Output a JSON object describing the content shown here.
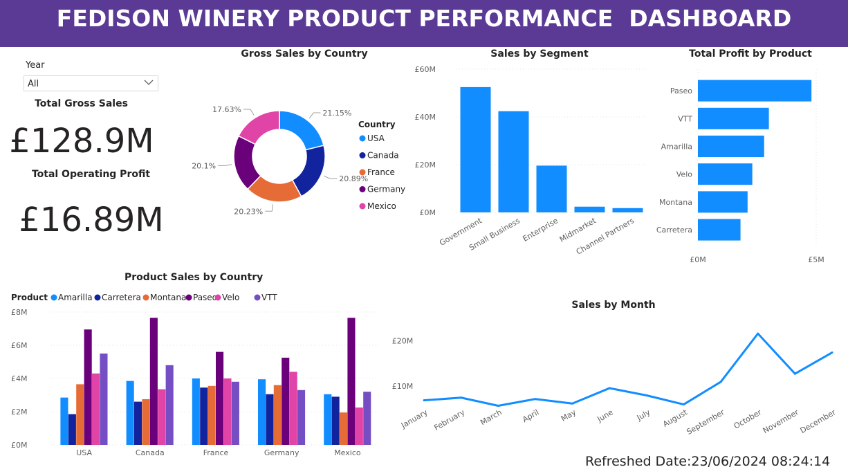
{
  "header": {
    "title": "FEDISON WINERY PRODUCT PERFORMANCE  DASHBOARD"
  },
  "slicer": {
    "label": "Year",
    "value": "All"
  },
  "cards": {
    "gross_sales_label": "Total Gross Sales",
    "gross_sales_value": "£128.9M",
    "operating_profit_label": "Total Operating Profit",
    "operating_profit_value": "£16.89M"
  },
  "colors": {
    "header": "#5b3a96",
    "blue": "#118dff",
    "navy": "#12239e",
    "orange": "#e66c37",
    "purple": "#6b007b",
    "pink": "#e044a7",
    "violet": "#744ec2"
  },
  "refreshed": "Refreshed Date:23/06/2024 08:24:14",
  "chart_data": [
    {
      "id": "donut",
      "type": "pie",
      "title": "Gross Sales by Country",
      "legend_title": "Country",
      "legend_position": "right",
      "categories": [
        "USA",
        "Canada",
        "France",
        "Germany",
        "Mexico"
      ],
      "values": [
        21.15,
        20.89,
        20.23,
        20.1,
        17.63
      ],
      "labels": [
        "21.15%",
        "20.89%",
        "20.23%",
        "20.1%",
        "17.63%"
      ],
      "colors": [
        "#118dff",
        "#12239e",
        "#e66c37",
        "#6b007b",
        "#e044a7"
      ]
    },
    {
      "id": "segment",
      "type": "bar",
      "title": "Sales by Segment",
      "categories": [
        "Government",
        "Small Business",
        "Enterprise",
        "Midmarket",
        "Channel Partners"
      ],
      "values": [
        52.5,
        42.4,
        19.6,
        2.4,
        1.8
      ],
      "ylim": [
        0,
        60
      ],
      "yticks": [
        0,
        20,
        40,
        60
      ],
      "ytick_labels": [
        "£0M",
        "£20M",
        "£40M",
        "£60M"
      ],
      "grid": true,
      "color": "#118dff"
    },
    {
      "id": "profit",
      "type": "bar",
      "orientation": "horizontal",
      "title": "Total Profit by Product",
      "categories": [
        "Paseo",
        "VTT",
        "Amarilla",
        "Velo",
        "Montana",
        "Carretera"
      ],
      "values": [
        4.8,
        3.0,
        2.8,
        2.3,
        2.1,
        1.8
      ],
      "xlim": [
        0,
        5
      ],
      "xticks": [
        0,
        5
      ],
      "xtick_labels": [
        "£0M",
        "£5M"
      ],
      "color": "#118dff"
    },
    {
      "id": "product_country",
      "type": "bar",
      "title": "Product Sales by Country",
      "legend_title": "Product",
      "legend_position": "top-left",
      "categories": [
        "USA",
        "Canada",
        "France",
        "Germany",
        "Mexico"
      ],
      "series": [
        {
          "name": "Amarilla",
          "values": [
            2.85,
            3.85,
            4.0,
            3.95,
            3.05
          ],
          "color": "#118dff"
        },
        {
          "name": "Carretera",
          "values": [
            1.85,
            2.6,
            3.45,
            3.05,
            2.9
          ],
          "color": "#12239e"
        },
        {
          "name": "Montana",
          "values": [
            3.65,
            2.75,
            3.55,
            3.6,
            1.95
          ],
          "color": "#e66c37"
        },
        {
          "name": "Paseo",
          "values": [
            6.95,
            7.65,
            5.6,
            5.25,
            7.65
          ],
          "color": "#6b007b"
        },
        {
          "name": "Velo",
          "values": [
            4.3,
            3.35,
            4.0,
            4.4,
            2.25
          ],
          "color": "#e044a7"
        },
        {
          "name": "VTT",
          "values": [
            5.5,
            4.8,
            3.8,
            3.3,
            3.2
          ],
          "color": "#744ec2"
        }
      ],
      "ylim": [
        0,
        8
      ],
      "yticks": [
        0,
        2,
        4,
        6,
        8
      ],
      "ytick_labels": [
        "£0M",
        "£2M",
        "£4M",
        "£6M",
        "£8M"
      ],
      "grid": true
    },
    {
      "id": "month",
      "type": "line",
      "title": "Sales by Month",
      "x": [
        "January",
        "February",
        "March",
        "April",
        "May",
        "June",
        "July",
        "August",
        "September",
        "October",
        "November",
        "December"
      ],
      "values": [
        6.8,
        7.4,
        5.6,
        7.1,
        6.1,
        9.5,
        7.9,
        5.9,
        10.9,
        21.6,
        12.7,
        17.4
      ],
      "ylim": [
        0,
        25
      ],
      "yticks": [
        10,
        20
      ],
      "ytick_labels": [
        "£10M",
        "£20M"
      ],
      "color": "#118dff"
    }
  ]
}
